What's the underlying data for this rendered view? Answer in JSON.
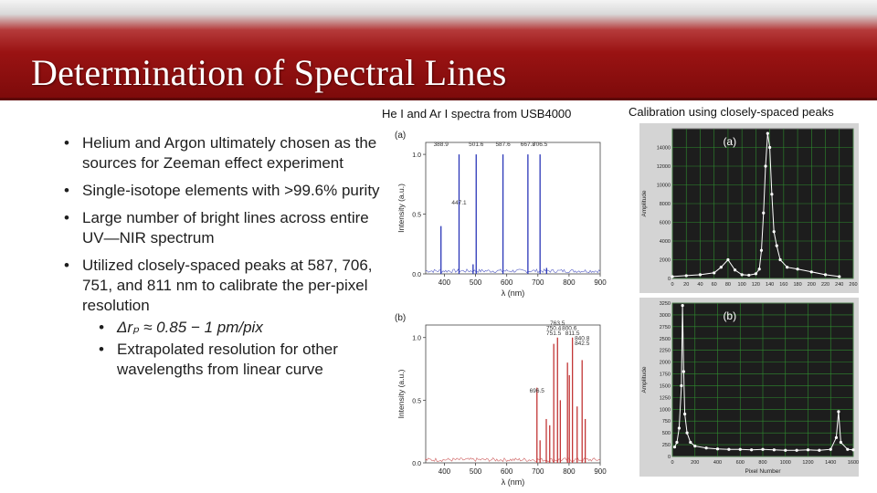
{
  "slide": {
    "title": "Determination of Spectral Lines",
    "colors": {
      "header_red": "#9a1313",
      "he_spectrum": "#2a36b8",
      "ar_spectrum": "#c23636",
      "plot_bg": "#1d1d1d",
      "grid": "#2f8c2f"
    }
  },
  "bullets": [
    {
      "text": "Helium and Argon ultimately chosen as the sources for Zeeman effect experiment"
    },
    {
      "text": "Single-isotope elements with >99.6% purity"
    },
    {
      "text": "Large number of bright lines across entire UV—NIR spectrum"
    },
    {
      "text": "Utilized closely-spaced peaks at 587, 706, 751, and 811 nm to calibrate the per-pixel resolution",
      "sub": [
        {
          "text": "Δrₚ ≈ 0.85 − 1 pm/pix"
        },
        {
          "text": "Extrapolated resolution for other wavelengths from linear curve"
        }
      ]
    }
  ],
  "captions": {
    "spectra": "He I and Ar I spectra from USB4000",
    "calibration": "Calibration using closely-spaced peaks"
  },
  "chart_data": [
    {
      "type": "line",
      "panel_label": "(a)",
      "xlabel": "λ (nm)",
      "ylabel": "Intensity (a.u.)",
      "xlim": [
        340,
        900
      ],
      "ylim": [
        0,
        1.1
      ],
      "x_ticks": [
        "400",
        "500",
        "600",
        "700",
        "800",
        "900"
      ],
      "y_ticks": [
        "0.0",
        "0.5",
        "1.0"
      ],
      "series": [
        {
          "values": [
            [
              389,
              0.4
            ],
            [
              447,
              1.0
            ],
            [
              492,
              0.08
            ],
            [
              502,
              1.0
            ],
            [
              588,
              1.0
            ],
            [
              668,
              1.0
            ],
            [
              707,
              1.0
            ],
            [
              728,
              0.05
            ]
          ]
        }
      ],
      "peak_labels": [
        {
          "x": 389,
          "y": 1.07,
          "text": "388.9"
        },
        {
          "x": 502,
          "y": 1.07,
          "text": "501.6"
        },
        {
          "x": 588,
          "y": 1.07,
          "text": "587.6"
        },
        {
          "x": 668,
          "y": 1.07,
          "text": "667.8"
        },
        {
          "x": 707,
          "y": 1.07,
          "text": "706.5"
        },
        {
          "x": 447,
          "y": 0.58,
          "text": "447.1"
        }
      ]
    },
    {
      "type": "line",
      "panel_label": "(b)",
      "xlabel": "λ (nm)",
      "ylabel": "Intensity (a.u.)",
      "xlim": [
        340,
        900
      ],
      "ylim": [
        0,
        1.1
      ],
      "x_ticks": [
        "400",
        "500",
        "600",
        "700",
        "800",
        "900"
      ],
      "y_ticks": [
        "0.0",
        "0.5",
        "1.0"
      ],
      "series": [
        {
          "values": [
            [
              697,
              0.6
            ],
            [
              707,
              0.18
            ],
            [
              727,
              0.35
            ],
            [
              738,
              0.3
            ],
            [
              751,
              0.95
            ],
            [
              763,
              1.0
            ],
            [
              772,
              0.5
            ],
            [
              795,
              0.8
            ],
            [
              801,
              0.7
            ],
            [
              811,
              1.0
            ],
            [
              826,
              0.45
            ],
            [
              842,
              0.82
            ],
            [
              852,
              0.35
            ]
          ]
        }
      ],
      "peak_labels": [
        {
          "x": 697,
          "y": 0.56,
          "text": "696.5"
        },
        {
          "x": 751,
          "y": 1.06,
          "text": "750.4"
        },
        {
          "x": 763,
          "y": 1.1,
          "text": "763.5"
        },
        {
          "x": 751,
          "y": 1.02,
          "text": "751.5"
        },
        {
          "x": 801,
          "y": 1.06,
          "text": "800.6"
        },
        {
          "x": 811,
          "y": 1.02,
          "text": "811.5"
        },
        {
          "x": 842,
          "y": 0.98,
          "text": "840.8"
        },
        {
          "x": 842,
          "y": 0.94,
          "text": "842.5"
        }
      ]
    },
    {
      "type": "scatter",
      "panel_label": "(a)",
      "xlabel": "",
      "ylabel": "Amplitude",
      "xlim": [
        0,
        260
      ],
      "ylim": [
        0,
        16000
      ],
      "x_ticks": [
        "0",
        "20",
        "40",
        "60",
        "80",
        "100",
        "120",
        "140",
        "160",
        "180",
        "200",
        "220",
        "240",
        "260"
      ],
      "y_ticks": [
        "0",
        "2000",
        "4000",
        "6000",
        "8000",
        "10000",
        "12000",
        "14000"
      ],
      "series": [
        {
          "values": [
            [
              0,
              200
            ],
            [
              20,
              300
            ],
            [
              40,
              400
            ],
            [
              60,
              600
            ],
            [
              70,
              1200
            ],
            [
              80,
              2000
            ],
            [
              90,
              900
            ],
            [
              100,
              400
            ],
            [
              110,
              350
            ],
            [
              120,
              500
            ],
            [
              125,
              1000
            ],
            [
              128,
              3000
            ],
            [
              131,
              7000
            ],
            [
              134,
              12000
            ],
            [
              137,
              15500
            ],
            [
              140,
              14000
            ],
            [
              143,
              9000
            ],
            [
              146,
              5000
            ],
            [
              150,
              3500
            ],
            [
              155,
              2000
            ],
            [
              165,
              1200
            ],
            [
              180,
              1000
            ],
            [
              200,
              700
            ],
            [
              220,
              400
            ],
            [
              240,
              200
            ]
          ]
        }
      ]
    },
    {
      "type": "scatter",
      "panel_label": "(b)",
      "xlabel": "Pixel Number",
      "ylabel": "Amplitude",
      "xlim": [
        0,
        1600
      ],
      "ylim": [
        0,
        3250
      ],
      "x_ticks": [
        "0",
        "200",
        "400",
        "600",
        "800",
        "1000",
        "1200",
        "1400",
        "1600"
      ],
      "y_ticks": [
        "0",
        "250",
        "500",
        "750",
        "1000",
        "1250",
        "1500",
        "1750",
        "2000",
        "2250",
        "2500",
        "2750",
        "3000",
        "3250"
      ],
      "series": [
        {
          "values": [
            [
              20,
              200
            ],
            [
              40,
              300
            ],
            [
              60,
              600
            ],
            [
              80,
              1500
            ],
            [
              90,
              3200
            ],
            [
              100,
              1800
            ],
            [
              110,
              900
            ],
            [
              130,
              500
            ],
            [
              160,
              300
            ],
            [
              200,
              220
            ],
            [
              300,
              180
            ],
            [
              400,
              160
            ],
            [
              500,
              150
            ],
            [
              600,
              150
            ],
            [
              700,
              140
            ],
            [
              800,
              150
            ],
            [
              900,
              140
            ],
            [
              1000,
              130
            ],
            [
              1100,
              130
            ],
            [
              1200,
              140
            ],
            [
              1300,
              130
            ],
            [
              1400,
              150
            ],
            [
              1450,
              400
            ],
            [
              1470,
              950
            ],
            [
              1490,
              300
            ],
            [
              1550,
              150
            ],
            [
              1600,
              140
            ]
          ]
        }
      ]
    }
  ]
}
